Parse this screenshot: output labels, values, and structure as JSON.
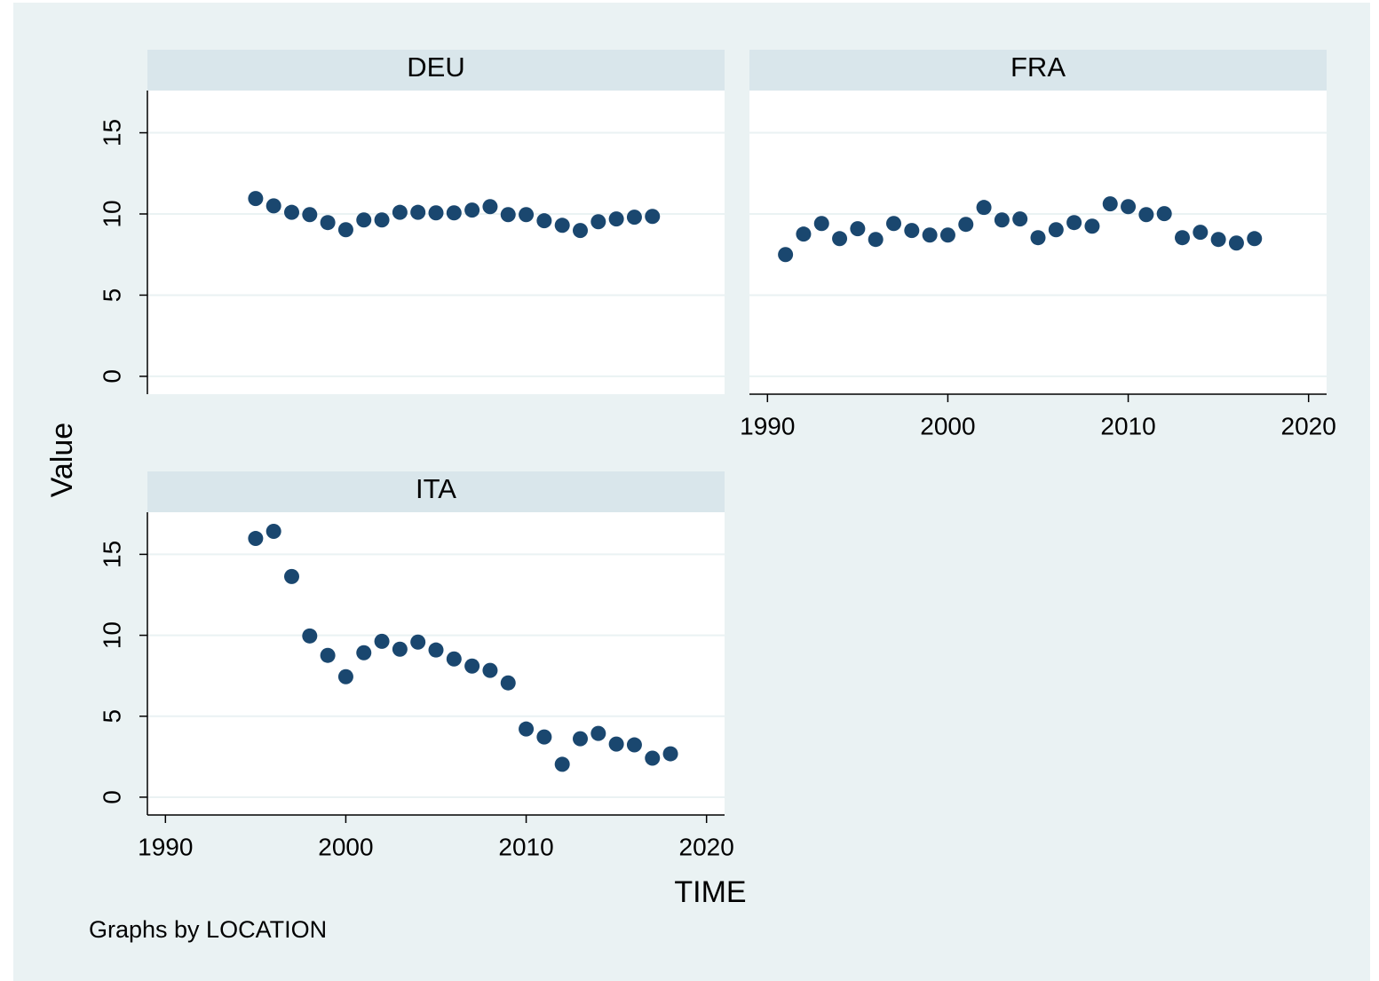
{
  "chart_data": [
    {
      "type": "scatter",
      "title": "DEU",
      "color": "#1a476f",
      "xlim": [
        1989,
        2021
      ],
      "ylim": [
        -1.1,
        17.6
      ],
      "xticks": [
        1990,
        2000,
        2010,
        2020
      ],
      "yticks": [
        0,
        5,
        10,
        15
      ],
      "grid": true,
      "show_xaxis": false,
      "show_yaxis": true,
      "x": [
        1995,
        1996,
        1997,
        1998,
        1999,
        2000,
        2001,
        2002,
        2003,
        2004,
        2005,
        2006,
        2007,
        2008,
        2009,
        2010,
        2011,
        2012,
        2013,
        2014,
        2015,
        2016,
        2017
      ],
      "values": [
        10.95,
        10.5,
        10.1,
        9.96,
        9.47,
        9.03,
        9.63,
        9.63,
        10.1,
        10.1,
        10.07,
        10.07,
        10.24,
        10.45,
        9.96,
        9.96,
        9.58,
        9.3,
        8.98,
        9.52,
        9.69,
        9.8,
        9.85
      ]
    },
    {
      "type": "scatter",
      "title": "FRA",
      "color": "#1a476f",
      "xlim": [
        1989,
        2021
      ],
      "ylim": [
        -1.1,
        17.6
      ],
      "xticks": [
        1990,
        2000,
        2010,
        2020
      ],
      "yticks": [
        0,
        5,
        10,
        15
      ],
      "grid": true,
      "show_xaxis": true,
      "show_yaxis": false,
      "x": [
        1991,
        1992,
        1993,
        1994,
        1995,
        1996,
        1997,
        1998,
        1999,
        2000,
        2001,
        2002,
        2003,
        2004,
        2005,
        2006,
        2007,
        2008,
        2009,
        2010,
        2011,
        2012,
        2013,
        2014,
        2015,
        2016,
        2017
      ],
      "values": [
        7.5,
        8.76,
        9.41,
        8.48,
        9.09,
        8.43,
        9.41,
        8.98,
        8.7,
        8.7,
        9.36,
        10.4,
        9.63,
        9.69,
        8.54,
        9.03,
        9.47,
        9.25,
        10.62,
        10.45,
        9.96,
        10.02,
        8.54,
        8.87,
        8.43,
        8.21,
        8.48
      ]
    },
    {
      "type": "scatter",
      "title": "ITA",
      "color": "#1a476f",
      "xlim": [
        1989,
        2021
      ],
      "ylim": [
        -1.1,
        17.6
      ],
      "xticks": [
        1990,
        2000,
        2010,
        2020
      ],
      "yticks": [
        0,
        5,
        10,
        15
      ],
      "grid": true,
      "show_xaxis": true,
      "show_yaxis": true,
      "x": [
        1995,
        1996,
        1997,
        1998,
        1999,
        2000,
        2001,
        2002,
        2003,
        2004,
        2005,
        2006,
        2007,
        2008,
        2009,
        2010,
        2011,
        2012,
        2013,
        2014,
        2015,
        2016,
        2017,
        2018
      ],
      "values": [
        15.98,
        16.42,
        13.63,
        9.96,
        8.76,
        7.44,
        8.92,
        9.63,
        9.14,
        9.58,
        9.09,
        8.54,
        8.1,
        7.83,
        7.06,
        4.21,
        3.72,
        2.03,
        3.61,
        3.94,
        3.28,
        3.23,
        2.41,
        2.68
      ]
    }
  ],
  "y_label": "Value",
  "x_label": "TIME",
  "note": "Graphs by LOCATION"
}
